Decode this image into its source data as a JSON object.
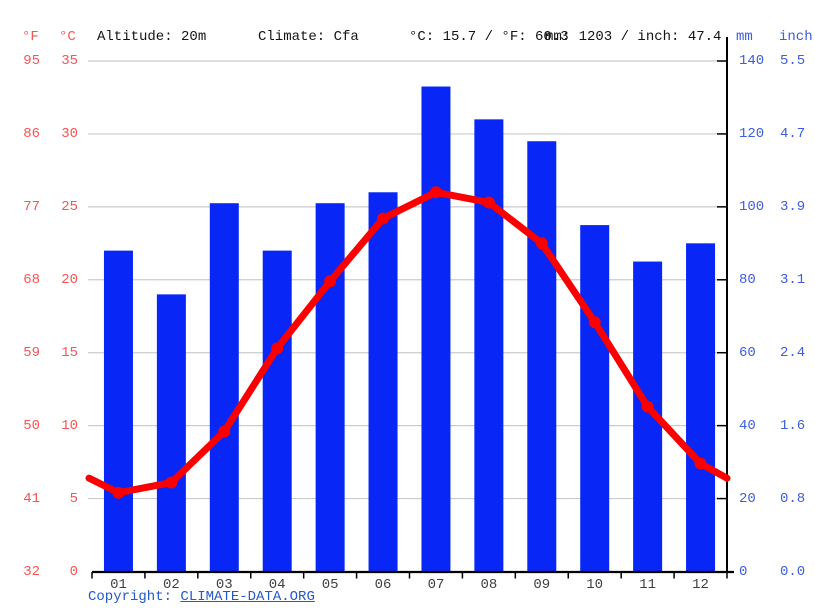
{
  "header": {
    "f_label": "°F",
    "c_label": "°C",
    "altitude": "Altitude: 20m",
    "climate": "Climate: Cfa",
    "temp_summary": "°C: 15.7 / °F: 60.3",
    "precip_summary": "mm: 1203 / inch: 47.4",
    "mm_label": "mm",
    "inch_label": "inch"
  },
  "axes": {
    "left_f_ticks": [
      "95",
      "86",
      "77",
      "68",
      "59",
      "50",
      "41",
      "32"
    ],
    "left_c_ticks": [
      "35",
      "30",
      "25",
      "20",
      "15",
      "10",
      "5",
      "0"
    ],
    "right_mm_ticks": [
      "140",
      "120",
      "100",
      "80",
      "60",
      "40",
      "20",
      "0"
    ],
    "right_inch_ticks": [
      "5.5",
      "4.7",
      "3.9",
      "3.1",
      "2.4",
      "1.6",
      "0.8",
      "0.0"
    ]
  },
  "chart_data": {
    "type": "bar",
    "subtype": "climate bar+line combo",
    "categories": [
      "01",
      "02",
      "03",
      "04",
      "05",
      "06",
      "07",
      "08",
      "09",
      "10",
      "11",
      "12"
    ],
    "series": [
      {
        "name": "precipitation_mm",
        "type": "bar",
        "values": [
          88,
          76,
          101,
          88,
          101,
          104,
          133,
          124,
          118,
          95,
          85,
          90
        ]
      },
      {
        "name": "temperature_c",
        "type": "line",
        "values": [
          5.4,
          6.1,
          9.6,
          15.3,
          19.9,
          24.2,
          26.0,
          25.3,
          22.5,
          17.1,
          11.3,
          7.4
        ]
      }
    ],
    "ylabel_left": "°C / °F",
    "ylabel_right": "mm / inch",
    "ylim_temp_c": [
      0,
      35
    ],
    "ylim_precip_mm": [
      0,
      140
    ],
    "grid": true,
    "legend_position": "none"
  },
  "footer": {
    "copyright_prefix": "Copyright: ",
    "copyright_link": "CLIMATE-DATA.ORG"
  },
  "colors": {
    "bar_blue": "#0827f7",
    "line_red": "#fa0000",
    "grid_gray": "#cccccc",
    "axis_black": "#000000",
    "red_label": "#f85454",
    "blue_label": "#3d5de2",
    "month_label": "#404040",
    "copyright_blue": "#2458cd"
  }
}
